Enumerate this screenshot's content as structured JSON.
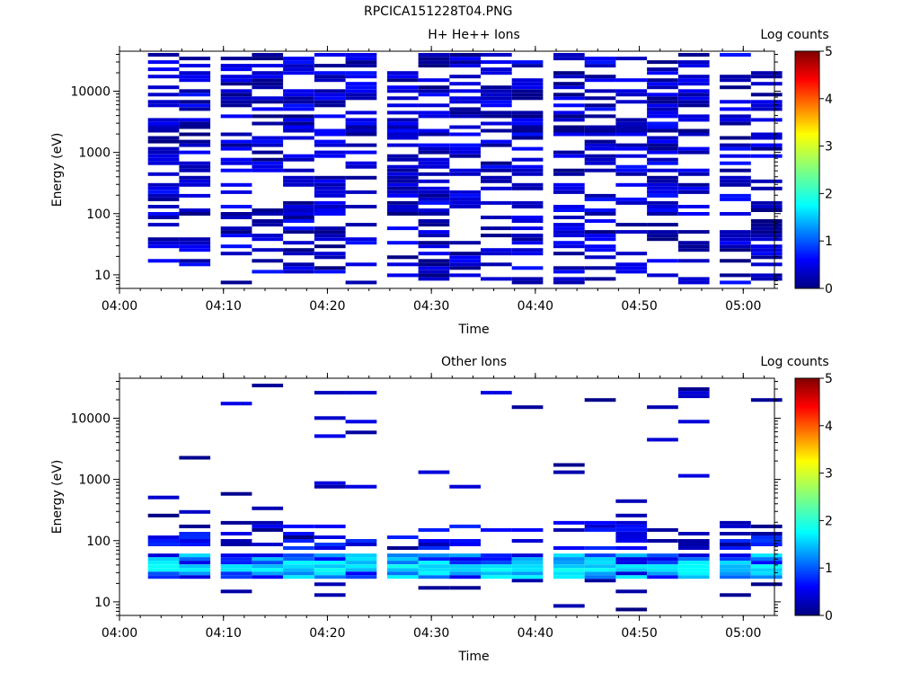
{
  "figure": {
    "filename": "RPCICA151228T04.PNG"
  },
  "chart_data": [
    {
      "type": "heatmap",
      "title": "H+ He++ Ions",
      "xlabel": "Time",
      "ylabel": "Energy (eV)",
      "y_scale": "log",
      "ylim": [
        6,
        45000
      ],
      "xlim": [
        "04:00",
        "05:03"
      ],
      "x_ticks": [
        "04:00",
        "04:10",
        "04:20",
        "04:30",
        "04:40",
        "04:50",
        "05:00"
      ],
      "y_ticks": [
        "10",
        "100",
        "1000",
        "10000"
      ],
      "colorbar": {
        "label": "Log counts",
        "ticks": [
          "0",
          "1",
          "2",
          "3",
          "4",
          "5"
        ],
        "range": [
          0,
          5
        ]
      },
      "time_bins": [
        "04:03",
        "04:06",
        "04:10",
        "04:13",
        "04:16",
        "04:19",
        "04:22",
        "04:26",
        "04:29",
        "04:32",
        "04:35",
        "04:38",
        "04:42",
        "04:45",
        "04:48",
        "04:51",
        "04:54",
        "04:58",
        "05:01"
      ],
      "note_fill": "sparse dark-blue cells (log counts ~0-0.5) across energies 8 eV - 40 keV"
    },
    {
      "type": "heatmap",
      "title": "Other Ions",
      "xlabel": "Time",
      "ylabel": "Energy (eV)",
      "y_scale": "log",
      "ylim": [
        6,
        45000
      ],
      "xlim": [
        "04:00",
        "05:03"
      ],
      "x_ticks": [
        "04:00",
        "04:10",
        "04:20",
        "04:30",
        "04:40",
        "04:50",
        "05:00"
      ],
      "y_ticks": [
        "10",
        "100",
        "1000",
        "10000"
      ],
      "colorbar": {
        "label": "Log counts",
        "ticks": [
          "0",
          "1",
          "2",
          "3",
          "4",
          "5"
        ],
        "range": [
          0,
          5
        ]
      },
      "band": {
        "energy_range_eV": [
          25,
          60
        ],
        "peak_log_counts": 1.8
      }
    }
  ]
}
